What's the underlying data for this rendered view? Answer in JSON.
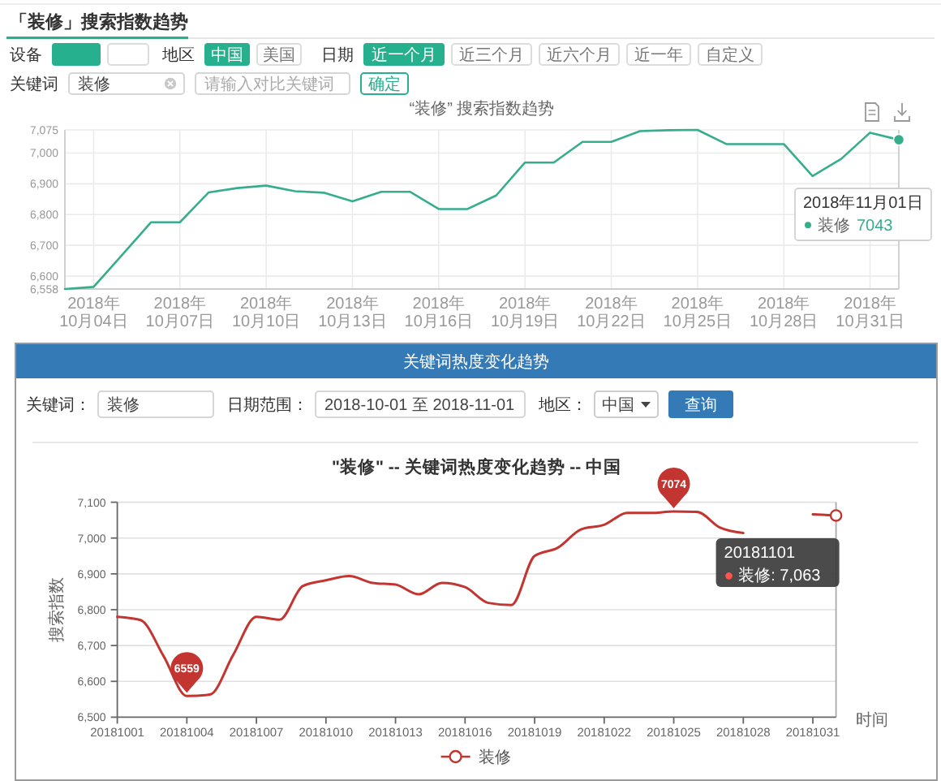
{
  "chart_data": [
    {
      "type": "line",
      "title": "“装修” 搜索指数趋势",
      "x": [
        "2018-10-03",
        "2018-10-04",
        "2018-10-05",
        "2018-10-06",
        "2018-10-07",
        "2018-10-08",
        "2018-10-09",
        "2018-10-10",
        "2018-10-11",
        "2018-10-12",
        "2018-10-13",
        "2018-10-14",
        "2018-10-15",
        "2018-10-16",
        "2018-10-17",
        "2018-10-18",
        "2018-10-19",
        "2018-10-20",
        "2018-10-21",
        "2018-10-22",
        "2018-10-23",
        "2018-10-24",
        "2018-10-25",
        "2018-10-26",
        "2018-10-27",
        "2018-10-28",
        "2018-10-29",
        "2018-10-30",
        "2018-10-31",
        "2018-11-01"
      ],
      "xlim": [
        "2018-10-03",
        "2018-11-01"
      ],
      "xticks": [
        {
          "value": "2018-10-04",
          "label": "2018年10月04日"
        },
        {
          "value": "2018-10-07",
          "label": "2018年10月07日"
        },
        {
          "value": "2018-10-10",
          "label": "2018年10月10日"
        },
        {
          "value": "2018-10-13",
          "label": "2018年10月13日"
        },
        {
          "value": "2018-10-16",
          "label": "2018年10月16日"
        },
        {
          "value": "2018-10-19",
          "label": "2018年10月19日"
        },
        {
          "value": "2018-10-22",
          "label": "2018年10月22日"
        },
        {
          "value": "2018-10-25",
          "label": "2018年10月25日"
        },
        {
          "value": "2018-10-28",
          "label": "2018年10月28日"
        },
        {
          "value": "2018-10-31",
          "label": "2018年10月31日"
        }
      ],
      "ylim": [
        6558,
        7075
      ],
      "yticks": [
        {
          "value": 6558,
          "label": "6,558"
        },
        {
          "value": 6600,
          "label": "6,600"
        },
        {
          "value": 6700,
          "label": "6,700"
        },
        {
          "value": 6800,
          "label": "6,800"
        },
        {
          "value": 6900,
          "label": "6,900"
        },
        {
          "value": 7000,
          "label": "7,000"
        },
        {
          "value": 7075,
          "label": "7,075"
        }
      ],
      "grid": true,
      "series": [
        {
          "name": "装修",
          "color": "#36ad8c",
          "values": [
            6558,
            6565,
            6670,
            6775,
            6775,
            6872,
            6886,
            6894,
            6876,
            6871,
            6843,
            6874,
            6874,
            6818,
            6818,
            6862,
            6969,
            6969,
            7036,
            7036,
            7071,
            7074,
            7075,
            7029,
            7029,
            7029,
            6925,
            6981,
            7066,
            7043
          ]
        }
      ],
      "ref_lines": [
        {
          "axis": "x",
          "value": "2018-11-01",
          "color": "#cccccc"
        }
      ],
      "annotations": [
        "「装修」搜索指数趋势",
        "设备",
        "地区",
        "中国",
        "美国",
        "日期",
        "近一个月",
        "近三个月",
        "近六个月",
        "近一年",
        "自定义",
        "关键词",
        "装修",
        "请输入对比关键词",
        "确定",
        "2018年11月01日",
        "7043"
      ]
    },
    {
      "type": "line",
      "title": "\"装修\" -- 关键词热度变化趋势 -- 中国",
      "xlabel": "时间",
      "ylabel": "搜索指数",
      "x": [
        "2018-10-01",
        "2018-10-02",
        "2018-10-03",
        "2018-10-04",
        "2018-10-05",
        "2018-10-06",
        "2018-10-07",
        "2018-10-08",
        "2018-10-09",
        "2018-10-10",
        "2018-10-11",
        "2018-10-12",
        "2018-10-13",
        "2018-10-14",
        "2018-10-15",
        "2018-10-16",
        "2018-10-17",
        "2018-10-18",
        "2018-10-19",
        "2018-10-20",
        "2018-10-21",
        "2018-10-22",
        "2018-10-23",
        "2018-10-24",
        "2018-10-25",
        "2018-10-26",
        "2018-10-27",
        "2018-10-28",
        "2018-10-29",
        "2018-10-30",
        "2018-10-31",
        "2018-11-01"
      ],
      "xlim": [
        "2018-10-01",
        "2018-11-01"
      ],
      "xticks": [
        {
          "value": "2018-10-01",
          "label": "20181001"
        },
        {
          "value": "2018-10-04",
          "label": "20181004"
        },
        {
          "value": "2018-10-07",
          "label": "20181007"
        },
        {
          "value": "2018-10-10",
          "label": "20181010"
        },
        {
          "value": "2018-10-13",
          "label": "20181013"
        },
        {
          "value": "2018-10-16",
          "label": "20181016"
        },
        {
          "value": "2018-10-19",
          "label": "20181019"
        },
        {
          "value": "2018-10-22",
          "label": "20181022"
        },
        {
          "value": "2018-10-25",
          "label": "20181025"
        },
        {
          "value": "2018-10-28",
          "label": "20181028"
        },
        {
          "value": "2018-10-31",
          "label": "20181031"
        }
      ],
      "ylim": [
        6500,
        7100
      ],
      "yticks": [
        {
          "value": 6500,
          "label": "6,500"
        },
        {
          "value": 6600,
          "label": "6,600"
        },
        {
          "value": 6700,
          "label": "6,700"
        },
        {
          "value": 6800,
          "label": "6,800"
        },
        {
          "value": 6900,
          "label": "6,900"
        },
        {
          "value": 7000,
          "label": "7,000"
        },
        {
          "value": 7100,
          "label": "7,100"
        }
      ],
      "grid": "y",
      "legend": "bottom",
      "series": [
        {
          "name": "装修",
          "color": "#c23531",
          "values": [
            6780,
            6771,
            6670,
            6559,
            6563,
            6674,
            6780,
            6772,
            6866,
            6882,
            6894,
            6875,
            6870,
            6843,
            6875,
            6863,
            6819,
            6813,
            6950,
            6973,
            7024,
            7037,
            7070,
            7070,
            7074,
            7073,
            7029,
            7014,
            null,
            null,
            7066,
            7063
          ],
          "value_labels": [
            null,
            null,
            null,
            "6559",
            null,
            null,
            null,
            null,
            null,
            null,
            null,
            null,
            null,
            null,
            null,
            null,
            null,
            null,
            null,
            null,
            null,
            null,
            null,
            null,
            "7074",
            null,
            null,
            null,
            null,
            null,
            null,
            null
          ]
        }
      ],
      "ref_lines": [
        {
          "axis": "x",
          "value": "2018-11-01",
          "color": "#aaaaaa"
        }
      ],
      "annotations": [
        "关键词热度变化趋势",
        "关键词：",
        "装修",
        "日期范围：",
        "2018-10-01 至 2018-11-01",
        "地区：",
        "中国",
        "查询",
        "20181101",
        "● 装修: 7,063"
      ]
    }
  ]
}
